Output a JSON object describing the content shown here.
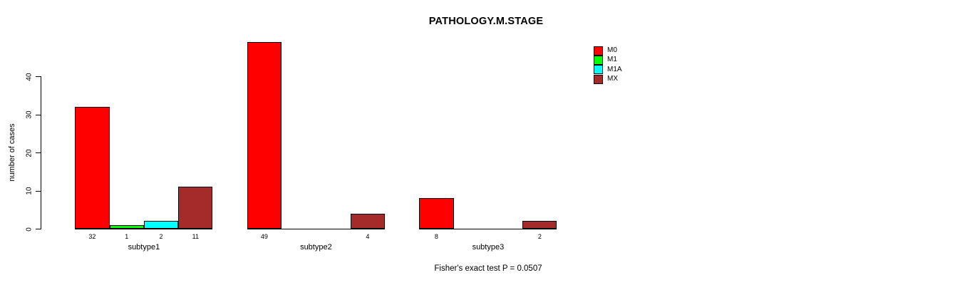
{
  "title": "PATHOLOGY.M.STAGE",
  "footer": "Fisher's exact test P = 0.0507",
  "y_axis": {
    "label": "number of cases"
  },
  "legend": {
    "items": [
      {
        "label": "M0",
        "color": "#FF0000"
      },
      {
        "label": "M1",
        "color": "#00FF00"
      },
      {
        "label": "M1A",
        "color": "#00FFFF"
      },
      {
        "label": "MX",
        "color": "#A52A2A"
      }
    ]
  },
  "chart_data": {
    "type": "bar",
    "title": "PATHOLOGY.M.STAGE",
    "ylabel": "number of cases",
    "xlabel": "",
    "categories": [
      "subtype1",
      "subtype2",
      "subtype3"
    ],
    "series": [
      {
        "name": "M0",
        "color": "#FF0000",
        "values": [
          32,
          49,
          8
        ]
      },
      {
        "name": "M1",
        "color": "#00FF00",
        "values": [
          1,
          0,
          0
        ]
      },
      {
        "name": "M1A",
        "color": "#00FFFF",
        "values": [
          2,
          0,
          0
        ]
      },
      {
        "name": "MX",
        "color": "#A52A2A",
        "values": [
          11,
          4,
          2
        ]
      }
    ],
    "yticks": [
      0,
      10,
      20,
      30,
      40
    ],
    "ylim": [
      0,
      49
    ],
    "grid": false,
    "grouped": true,
    "bar_borders": true,
    "legend_position": "top-right",
    "value_labels": "shown under each bar only when value > 0",
    "annotation": "Fisher's exact test P = 0.0507"
  }
}
